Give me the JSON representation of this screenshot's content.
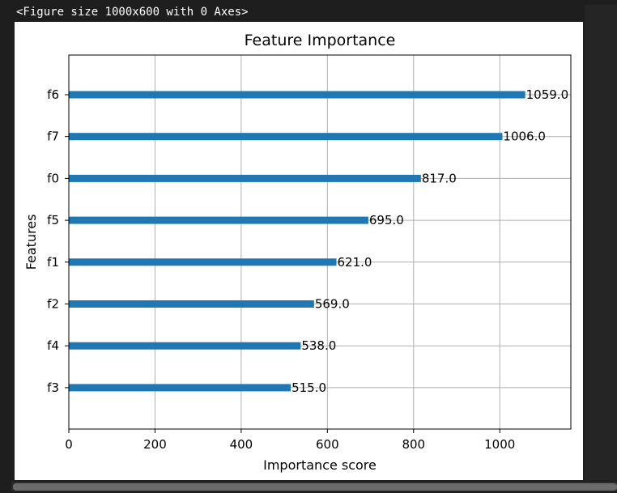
{
  "output_header": "<Figure size 1000x600 with 0 Axes>",
  "chart_data": {
    "type": "bar",
    "orientation": "horizontal",
    "title": "Feature Importance",
    "xlabel": "Importance score",
    "ylabel": "Features",
    "categories": [
      "f6",
      "f7",
      "f0",
      "f5",
      "f1",
      "f2",
      "f4",
      "f3"
    ],
    "values": [
      1059,
      1006,
      817,
      695,
      621,
      569,
      538,
      515
    ],
    "value_labels": [
      "1059.0",
      "1006.0",
      "817.0",
      "695.0",
      "621.0",
      "569.0",
      "538.0",
      "515.0"
    ],
    "xticks": [
      0,
      200,
      400,
      600,
      800,
      1000
    ],
    "xlim": [
      0,
      1164.9
    ],
    "grid": true,
    "bar_color": "#1f77b4"
  }
}
